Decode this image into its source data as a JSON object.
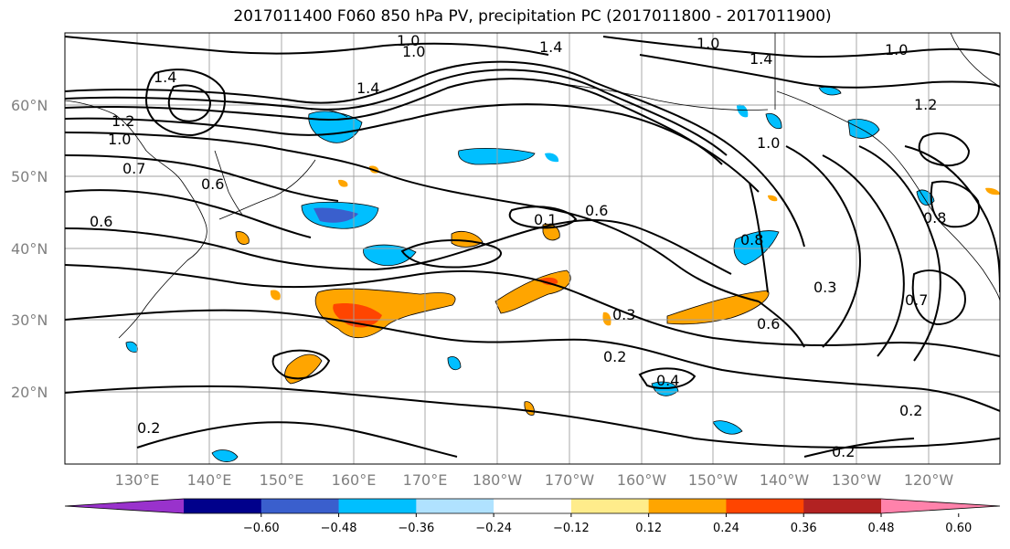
{
  "title": "2017011400 F060 850 hPa PV, precipitation PC (2017011800 - 2017011900)",
  "lat_labels": [
    "60°N",
    "50°N",
    "40°N",
    "30°N",
    "20°N"
  ],
  "lon_labels": [
    "130°E",
    "140°E",
    "150°E",
    "160°E",
    "170°E",
    "180°W",
    "170°W",
    "160°W",
    "150°W",
    "140°W",
    "130°W",
    "120°W"
  ],
  "colorbar": {
    "ticks": [
      "−0.60",
      "−0.48",
      "−0.36",
      "−0.24",
      "−0.12",
      "0.12",
      "0.24",
      "0.36",
      "0.48",
      "0.60"
    ],
    "colors": [
      "#9932cc",
      "#00008b",
      "#3a5fcd",
      "#00bfff",
      "#b0e2ff",
      "#ffffff",
      "#ffec8b",
      "#ffa500",
      "#ff4500",
      "#b22222",
      "#ff82ab"
    ]
  },
  "contour_labels": [
    {
      "text": "1.4"
    },
    {
      "text": "1.0"
    },
    {
      "text": "1.4"
    },
    {
      "text": "1.0"
    },
    {
      "text": "1.4"
    },
    {
      "text": "1.0"
    },
    {
      "text": "1.2"
    },
    {
      "text": "1.0"
    },
    {
      "text": "1.2"
    },
    {
      "text": "1.0"
    },
    {
      "text": "0.7"
    },
    {
      "text": "0.6"
    },
    {
      "text": "0.6"
    },
    {
      "text": "0.1"
    },
    {
      "text": "0.6"
    },
    {
      "text": "0.8"
    },
    {
      "text": "0.3"
    },
    {
      "text": "0.3"
    },
    {
      "text": "0.6"
    },
    {
      "text": "0.2"
    },
    {
      "text": "0.2"
    },
    {
      "text": "0.4"
    },
    {
      "text": "0.2"
    },
    {
      "text": "0.2"
    },
    {
      "text": "0.8"
    },
    {
      "text": "0.7"
    },
    {
      "text": "1.0"
    },
    {
      "text": "1.4"
    }
  ]
}
